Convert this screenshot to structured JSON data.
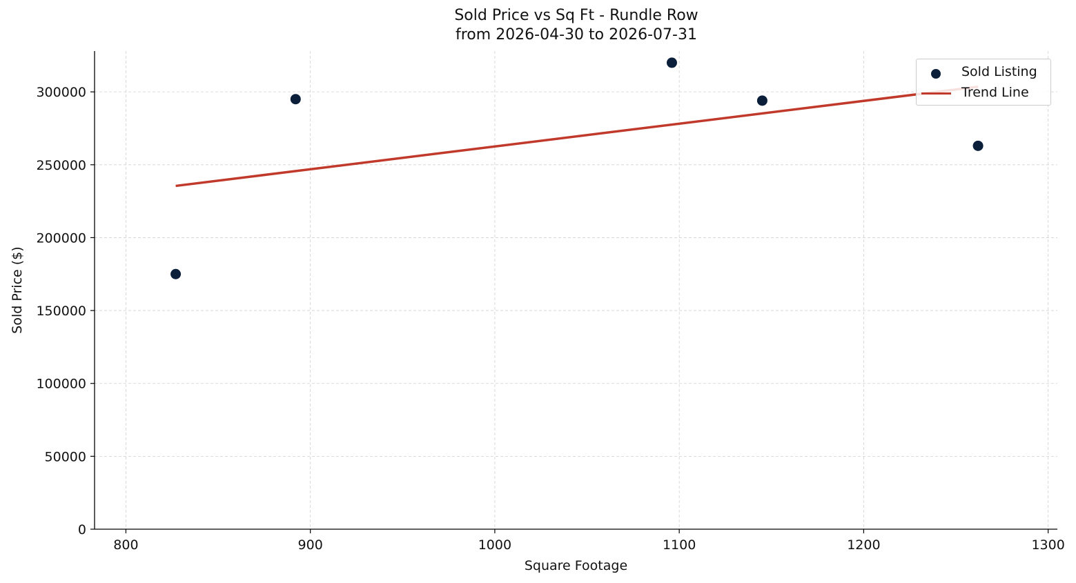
{
  "chart_data": {
    "type": "scatter",
    "title": "Sold Price vs Sq Ft - Rundle Row",
    "subtitle": "from 2026-04-30 to 2026-07-31",
    "xlabel": "Square Footage",
    "ylabel": "Sold Price ($)",
    "xlim": [
      783,
      1305
    ],
    "ylim": [
      0,
      328000
    ],
    "xticks": [
      800,
      900,
      1000,
      1100,
      1200,
      1300
    ],
    "yticks": [
      0,
      50000,
      100000,
      150000,
      200000,
      250000,
      300000
    ],
    "grid": true,
    "legend_position": "top-right",
    "series": [
      {
        "name": "Sold Listing",
        "kind": "scatter",
        "color": "#0b1f3a",
        "x": [
          827,
          892,
          1096,
          1145,
          1262
        ],
        "y": [
          175000,
          295000,
          320000,
          294000,
          263000
        ]
      },
      {
        "name": "Trend Line",
        "kind": "line",
        "color": "#c0392b",
        "x": [
          827,
          1262
        ],
        "y": [
          235500,
          303500
        ]
      }
    ]
  }
}
